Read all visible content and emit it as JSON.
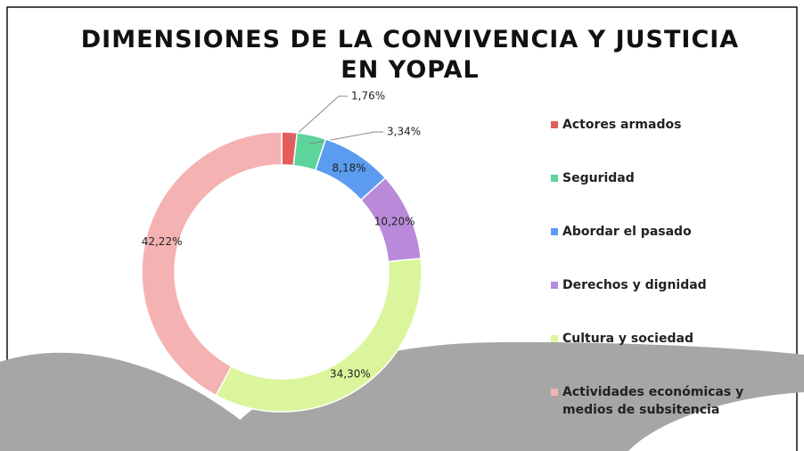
{
  "chart_data": {
    "type": "donut",
    "title": "DIMENSIONES DE LA CONVIVENCIA Y JUSTICIA EN YOPAL",
    "categories": [
      "Actores armados",
      "Seguridad",
      "Abordar el pasado",
      "Derechos y dignidad",
      "Cultura y sociedad",
      "Actividades económicas y medios de subsitencia"
    ],
    "values": [
      1.76,
      3.34,
      8.18,
      10.2,
      34.3,
      42.22
    ],
    "value_labels": [
      "1,76%",
      "3,34%",
      "8,18%",
      "10,20%",
      "34,30%",
      "42,22%"
    ],
    "colors": [
      "#e45c5c",
      "#5dd49a",
      "#5b9cf0",
      "#b98ad9",
      "#dbf59c",
      "#f4b2b2"
    ],
    "legend": "right"
  }
}
